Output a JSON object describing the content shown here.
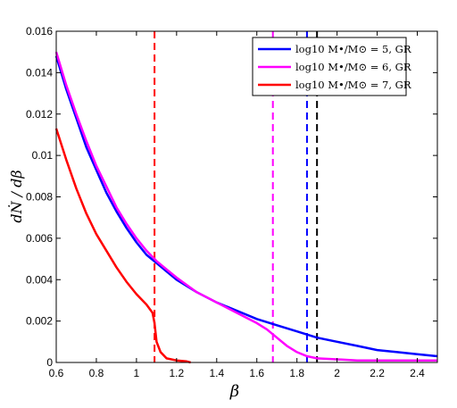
{
  "chart_data": {
    "type": "line",
    "xlabel": "β",
    "ylabel": "dṄ / dβ",
    "xlim": [
      0.6,
      2.5
    ],
    "ylim": [
      0,
      0.016
    ],
    "xticks": [
      "0.6",
      "0.8",
      "1",
      "1.2",
      "1.4",
      "1.6",
      "1.8",
      "2",
      "2.2",
      "2.4"
    ],
    "yticks": [
      "0",
      "0.002",
      "0.004",
      "0.006",
      "0.008",
      "0.01",
      "0.012",
      "0.014",
      "0.016"
    ],
    "grid": false,
    "legend": "top-right",
    "series": [
      {
        "name": "log10 M•/M⊙ = 5, GR",
        "color": "#0000ff",
        "x": [
          0.6,
          0.65,
          0.7,
          0.75,
          0.8,
          0.85,
          0.9,
          0.95,
          1.0,
          1.05,
          1.1,
          1.15,
          1.2,
          1.3,
          1.4,
          1.5,
          1.6,
          1.7,
          1.8,
          1.9,
          2.0,
          2.1,
          2.2,
          2.3,
          2.4,
          2.5
        ],
        "y": [
          0.0148,
          0.0132,
          0.0118,
          0.0104,
          0.0093,
          0.0082,
          0.0073,
          0.0065,
          0.0058,
          0.0052,
          0.0048,
          0.0044,
          0.004,
          0.0034,
          0.0029,
          0.0025,
          0.0021,
          0.0018,
          0.0015,
          0.0012,
          0.001,
          0.0008,
          0.0006,
          0.0005,
          0.0004,
          0.0003
        ]
      },
      {
        "name": "log10 M•/M⊙ = 6, GR",
        "color": "#ff00ff",
        "x": [
          0.6,
          0.65,
          0.7,
          0.75,
          0.8,
          0.85,
          0.9,
          0.95,
          1.0,
          1.05,
          1.1,
          1.15,
          1.2,
          1.3,
          1.4,
          1.5,
          1.6,
          1.65,
          1.7,
          1.75,
          1.8,
          1.85,
          1.9,
          2.0,
          2.1,
          2.2,
          2.3,
          2.4,
          2.5
        ],
        "y": [
          0.015,
          0.0134,
          0.012,
          0.0107,
          0.0095,
          0.0085,
          0.0075,
          0.0067,
          0.006,
          0.0054,
          0.0049,
          0.0045,
          0.0041,
          0.0034,
          0.0029,
          0.0024,
          0.0019,
          0.0016,
          0.0012,
          0.0008,
          0.0005,
          0.0003,
          0.0002,
          0.00015,
          0.0001,
          0.0001,
          0.0001,
          0.0001,
          0.0001
        ]
      },
      {
        "name": "log10 M•/M⊙ = 7, GR",
        "color": "#ff0000",
        "x": [
          0.6,
          0.65,
          0.7,
          0.75,
          0.8,
          0.85,
          0.9,
          0.95,
          1.0,
          1.05,
          1.08,
          1.09,
          1.1,
          1.12,
          1.15,
          1.2,
          1.25,
          1.27
        ],
        "y": [
          0.0113,
          0.0098,
          0.0084,
          0.0072,
          0.0062,
          0.0054,
          0.0046,
          0.0039,
          0.0033,
          0.0028,
          0.0024,
          0.0019,
          0.001,
          0.0005,
          0.0002,
          0.0001,
          5e-05,
          0.0
        ]
      }
    ],
    "vlines": [
      {
        "x": 1.09,
        "color": "#ff0000"
      },
      {
        "x": 1.68,
        "color": "#ff00ff"
      },
      {
        "x": 1.85,
        "color": "#0000ff"
      },
      {
        "x": 1.9,
        "color": "#000000"
      }
    ]
  }
}
